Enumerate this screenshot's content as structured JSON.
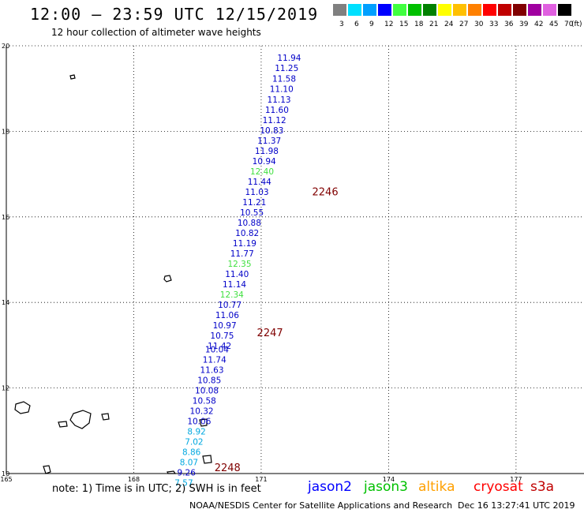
{
  "header": {
    "title": "12:00 — 23:59 UTC 12/15/2019",
    "subtitle": "12 hour collection of altimeter wave heights"
  },
  "colorbar": {
    "unit": "(ft)",
    "bins": [
      {
        "label": "3",
        "color": "#808080"
      },
      {
        "label": "6",
        "color": "#00e0ff"
      },
      {
        "label": "9",
        "color": "#00a0ff"
      },
      {
        "label": "12",
        "color": "#0000ff"
      },
      {
        "label": "15",
        "color": "#40ff40"
      },
      {
        "label": "18",
        "color": "#00c000"
      },
      {
        "label": "21",
        "color": "#008000"
      },
      {
        "label": "24",
        "color": "#ffff00"
      },
      {
        "label": "27",
        "color": "#ffc000"
      },
      {
        "label": "30",
        "color": "#ff8000"
      },
      {
        "label": "33",
        "color": "#ff0000"
      },
      {
        "label": "36",
        "color": "#c00000"
      },
      {
        "label": "39",
        "color": "#800000"
      },
      {
        "label": "42",
        "color": "#a000a0"
      },
      {
        "label": "45",
        "color": "#e060e0"
      },
      {
        "label": "70",
        "color": "#000000"
      }
    ]
  },
  "map": {
    "lon_range": [
      165,
      178.6
    ],
    "lat_range": [
      10,
      20
    ],
    "lon_ticks": [
      "165",
      "168",
      "171",
      "174",
      "177"
    ],
    "lat_ticks": [
      "20",
      "18",
      "16",
      "14",
      "12",
      "10"
    ],
    "lat_tick_values": [
      20,
      18,
      16,
      14,
      12,
      10
    ],
    "lon_tick_values": [
      165,
      168,
      171,
      174,
      177
    ],
    "colors": {
      "jason2": "#0000c8",
      "jason3_light": "#40e040",
      "cyan": "#00a8e0",
      "time": "#800000"
    },
    "observations": [
      {
        "lon": 171.66,
        "lat": 19.72,
        "value": "11.94",
        "color": "#0000c8"
      },
      {
        "lon": 171.6,
        "lat": 19.48,
        "value": "11.25",
        "color": "#0000c8"
      },
      {
        "lon": 171.54,
        "lat": 19.23,
        "value": "11.58",
        "color": "#0000c8"
      },
      {
        "lon": 171.48,
        "lat": 18.99,
        "value": "11.10",
        "color": "#0000c8"
      },
      {
        "lon": 171.42,
        "lat": 18.75,
        "value": "11.13",
        "color": "#0000c8"
      },
      {
        "lon": 171.37,
        "lat": 18.51,
        "value": "11.60",
        "color": "#0000c8"
      },
      {
        "lon": 171.31,
        "lat": 18.27,
        "value": "11.12",
        "color": "#0000c8"
      },
      {
        "lon": 171.25,
        "lat": 18.03,
        "value": "10.83",
        "color": "#0000c8"
      },
      {
        "lon": 171.19,
        "lat": 17.79,
        "value": "11.37",
        "color": "#0000c8"
      },
      {
        "lon": 171.13,
        "lat": 17.55,
        "value": "11.98",
        "color": "#0000c8"
      },
      {
        "lon": 171.07,
        "lat": 17.31,
        "value": "10.94",
        "color": "#0000c8"
      },
      {
        "lon": 171.02,
        "lat": 17.07,
        "value": "12.40",
        "color": "#40e040"
      },
      {
        "lon": 170.96,
        "lat": 16.83,
        "value": "11.44",
        "color": "#0000c8"
      },
      {
        "lon": 170.9,
        "lat": 16.59,
        "value": "11.03",
        "color": "#0000c8"
      },
      {
        "lon": 170.84,
        "lat": 16.35,
        "value": "11.21",
        "color": "#0000c8"
      },
      {
        "lon": 170.78,
        "lat": 16.11,
        "value": "10.55",
        "color": "#0000c8"
      },
      {
        "lon": 170.72,
        "lat": 15.87,
        "value": "10.88",
        "color": "#0000c8"
      },
      {
        "lon": 170.67,
        "lat": 15.63,
        "value": "10.82",
        "color": "#0000c8"
      },
      {
        "lon": 170.61,
        "lat": 15.39,
        "value": "11.19",
        "color": "#0000c8"
      },
      {
        "lon": 170.55,
        "lat": 15.15,
        "value": "11.77",
        "color": "#0000c8"
      },
      {
        "lon": 170.49,
        "lat": 14.91,
        "value": "12.35",
        "color": "#40e040"
      },
      {
        "lon": 170.43,
        "lat": 14.67,
        "value": "11.40",
        "color": "#0000c8"
      },
      {
        "lon": 170.37,
        "lat": 14.43,
        "value": "11.14",
        "color": "#0000c8"
      },
      {
        "lon": 170.31,
        "lat": 14.19,
        "value": "12.34",
        "color": "#40e040"
      },
      {
        "lon": 170.26,
        "lat": 13.95,
        "value": "10.77",
        "color": "#0000c8"
      },
      {
        "lon": 170.2,
        "lat": 13.71,
        "value": "11.06",
        "color": "#0000c8"
      },
      {
        "lon": 170.14,
        "lat": 13.47,
        "value": "10.97",
        "color": "#0000c8"
      },
      {
        "lon": 170.08,
        "lat": 13.23,
        "value": "10.75",
        "color": "#0000c8"
      },
      {
        "lon": 170.02,
        "lat": 12.99,
        "value": "11.42",
        "color": "#0000c8"
      },
      {
        "lon": 169.96,
        "lat": 12.91,
        "value": "10.04",
        "color": "#0000c8"
      },
      {
        "lon": 169.9,
        "lat": 12.67,
        "value": "11.74",
        "color": "#0000c8"
      },
      {
        "lon": 169.84,
        "lat": 12.43,
        "value": "11.63",
        "color": "#0000c8"
      },
      {
        "lon": 169.78,
        "lat": 12.19,
        "value": "10.85",
        "color": "#0000c8"
      },
      {
        "lon": 169.72,
        "lat": 11.95,
        "value": "10.08",
        "color": "#0000c8"
      },
      {
        "lon": 169.66,
        "lat": 11.71,
        "value": "10.58",
        "color": "#0000c8"
      },
      {
        "lon": 169.6,
        "lat": 11.47,
        "value": "10.32",
        "color": "#0000c8"
      },
      {
        "lon": 169.54,
        "lat": 11.23,
        "value": "10.06",
        "color": "#0000c8"
      },
      {
        "lon": 169.48,
        "lat": 10.99,
        "value": "8.92",
        "color": "#00a8e0"
      },
      {
        "lon": 169.42,
        "lat": 10.75,
        "value": "7.02",
        "color": "#00a8e0"
      },
      {
        "lon": 169.36,
        "lat": 10.51,
        "value": "8.86",
        "color": "#00a8e0"
      },
      {
        "lon": 169.3,
        "lat": 10.27,
        "value": "8.07",
        "color": "#00a8e0"
      },
      {
        "lon": 169.24,
        "lat": 10.03,
        "value": "9.26",
        "color": "#0000c8"
      },
      {
        "lon": 169.18,
        "lat": 9.79,
        "value": "7.57",
        "color": "#00a8e0"
      }
    ],
    "time_labels": [
      {
        "lon": 172.2,
        "lat": 16.6,
        "value": "2246"
      },
      {
        "lon": 170.9,
        "lat": 13.3,
        "value": "2247"
      },
      {
        "lon": 169.9,
        "lat": 10.15,
        "value": "2248"
      }
    ]
  },
  "legend": {
    "note": "note: 1) Time is in UTC; 2) SWH is in feet",
    "satellites": [
      {
        "name": "jason2",
        "color": "#0000ff"
      },
      {
        "name": "jason3",
        "color": "#00c000"
      },
      {
        "name": "altika",
        "color": "#ffa000"
      },
      {
        "name": "cryosat",
        "color": "#ff0000"
      },
      {
        "name": "s3a",
        "color": "#c00000"
      }
    ]
  },
  "footer": {
    "credit": "NOAA/NESDIS Center for Satellite Applications and Research",
    "timestamp": "Dec 16 13:27:41 UTC 2019"
  }
}
